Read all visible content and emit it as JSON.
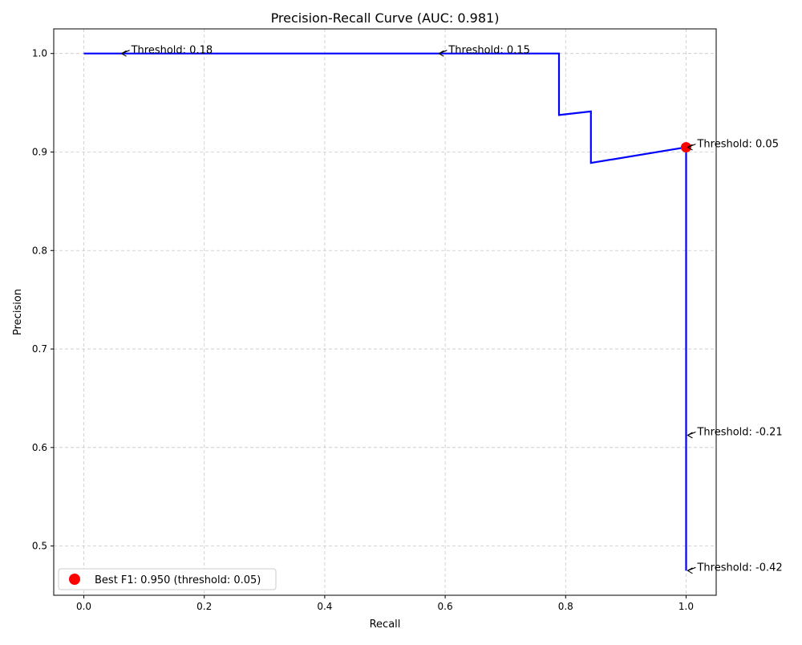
{
  "chart_data": {
    "type": "line",
    "title": "Precision-Recall Curve (AUC: 0.981)",
    "xlabel": "Recall",
    "ylabel": "Precision",
    "xlim": [
      -0.05,
      1.05
    ],
    "ylim": [
      0.45,
      1.025
    ],
    "xticks": [
      0.0,
      0.2,
      0.4,
      0.6,
      0.8,
      1.0
    ],
    "xtick_labels": [
      "0.0",
      "0.2",
      "0.4",
      "0.6",
      "0.8",
      "1.0"
    ],
    "yticks": [
      0.5,
      0.6,
      0.7,
      0.8,
      0.9,
      1.0
    ],
    "ytick_labels": [
      "0.5",
      "0.6",
      "0.7",
      "0.8",
      "0.9",
      "1.0"
    ],
    "grid": true,
    "series": [
      {
        "color": "#0000ff",
        "x": [
          0.0,
          0.789,
          0.789,
          0.842,
          0.842,
          1.0,
          1.0,
          1.0
        ],
        "y": [
          1.0,
          1.0,
          0.9375,
          0.9412,
          0.8889,
          0.9048,
          0.475,
          0.475
        ]
      }
    ],
    "best_point": {
      "x": 1.0,
      "y": 0.9048,
      "color": "#ff0000",
      "legend": "Best F1: 0.950 (threshold: 0.05)"
    },
    "annotations": [
      {
        "text": "Threshold: 0.18",
        "x": 0.06,
        "y": 1.0
      },
      {
        "text": "Threshold: 0.15",
        "x": 0.587,
        "y": 1.0
      },
      {
        "text": "Threshold: 0.05",
        "x": 1.0,
        "y": 0.9048
      },
      {
        "text": "Threshold: -0.21",
        "x": 1.0,
        "y": 0.6125
      },
      {
        "text": "Threshold: -0.42",
        "x": 1.0,
        "y": 0.475
      }
    ],
    "legend_position": "lower-left"
  }
}
